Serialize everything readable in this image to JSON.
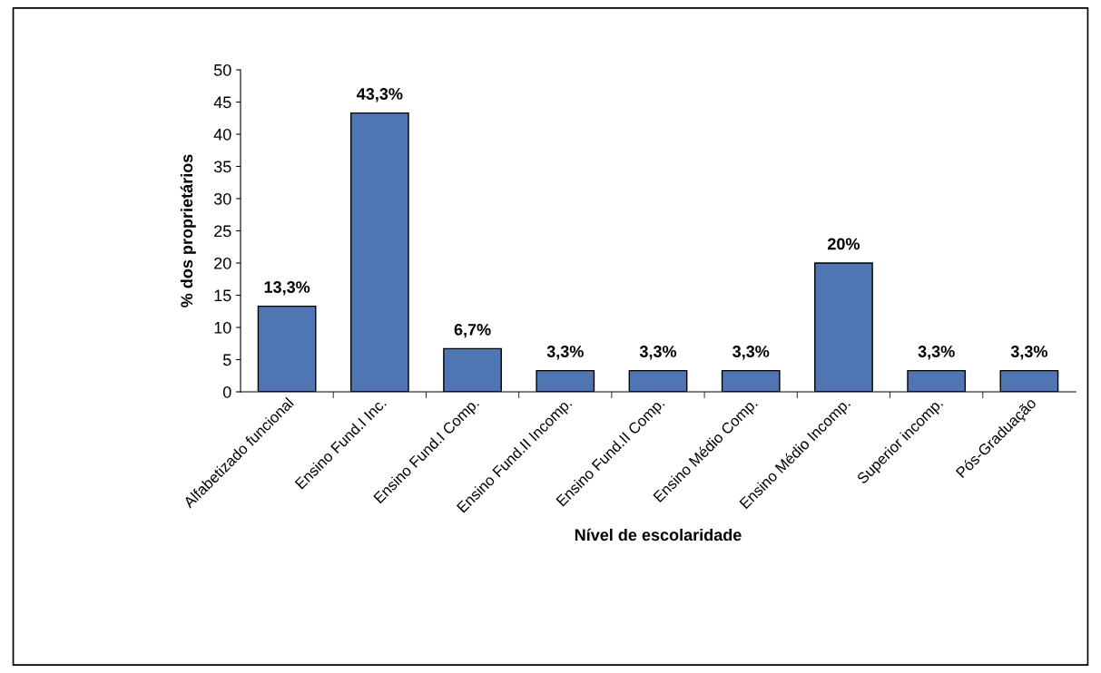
{
  "chart_data": {
    "type": "bar",
    "xlabel": "Nível de escolaridade",
    "ylabel": "% dos proprietários",
    "categories": [
      "Alfabetizado funcional",
      "Ensino Fund.I Inc.",
      "Ensino Fund.I Comp.",
      "Ensino Fund.II Incomp.",
      "Ensino Fund.II Comp.",
      "Ensino Médio Comp.",
      "Ensino Médio Incomp.",
      "Superior incomp.",
      "Pós-Graduação"
    ],
    "values": [
      13.3,
      43.3,
      6.7,
      3.3,
      3.3,
      3.3,
      20,
      3.3,
      3.3
    ],
    "value_labels": [
      "13,3%",
      "43,3%",
      "6,7%",
      "3,3%",
      "3,3%",
      "3,3%",
      "20%",
      "3,3%",
      "3,3%"
    ],
    "color": "#4f75b3",
    "ylim": [
      0,
      50
    ],
    "yticks": [
      0,
      5,
      10,
      15,
      20,
      25,
      30,
      35,
      40,
      45,
      50
    ],
    "grid": false,
    "legend": false
  }
}
